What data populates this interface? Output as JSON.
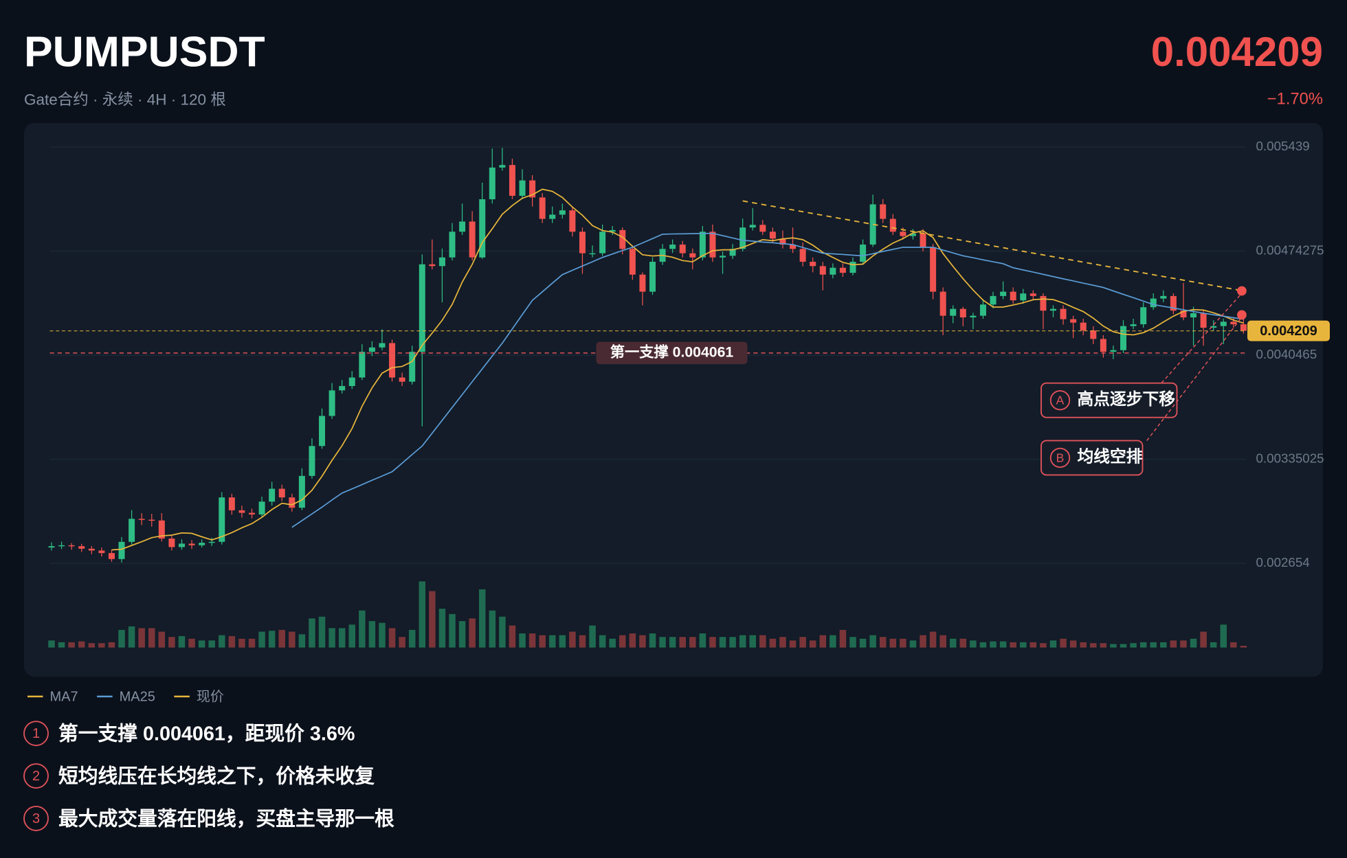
{
  "header": {
    "title": "PUMPUSDT",
    "subtitle": "Gate合约 · 永续 · 4H · 120 根",
    "change": "−1.70%"
  },
  "chart_data": {
    "type": "candlestick",
    "ylim": [
      0.002654,
      0.005439
    ],
    "yticks": [
      0.005439,
      0.00474275,
      0.0040465,
      0.00335025,
      0.002654
    ],
    "grid": true,
    "up_color": "#2ebd85",
    "down_color": "#f0524f",
    "candles": [
      [
        0.00276,
        0.002795,
        0.00274,
        0.002769
      ],
      [
        0.002769,
        0.0028,
        0.00275,
        0.002775
      ],
      [
        0.002775,
        0.00279,
        0.002745,
        0.002769
      ],
      [
        0.002769,
        0.002785,
        0.00273,
        0.002752
      ],
      [
        0.002752,
        0.00277,
        0.002715,
        0.00274
      ],
      [
        0.00274,
        0.00276,
        0.0027,
        0.002723
      ],
      [
        0.002723,
        0.002745,
        0.002665,
        0.002683
      ],
      [
        0.002683,
        0.00283,
        0.00266,
        0.002798
      ],
      [
        0.002798,
        0.00301,
        0.00278,
        0.002952
      ],
      [
        0.002952,
        0.00299,
        0.00291,
        0.002946
      ],
      [
        0.002946,
        0.002985,
        0.0029,
        0.002941
      ],
      [
        0.002941,
        0.00299,
        0.0028,
        0.00282
      ],
      [
        0.00282,
        0.002845,
        0.00274,
        0.002763
      ],
      [
        0.002763,
        0.002815,
        0.002745,
        0.002786
      ],
      [
        0.002786,
        0.00281,
        0.00275,
        0.002775
      ],
      [
        0.002775,
        0.002815,
        0.00276,
        0.002792
      ],
      [
        0.002792,
        0.002825,
        0.00277,
        0.002798
      ],
      [
        0.002798,
        0.00313,
        0.00278,
        0.003095
      ],
      [
        0.003095,
        0.00312,
        0.00298,
        0.003009
      ],
      [
        0.003009,
        0.00304,
        0.00296,
        0.002992
      ],
      [
        0.002992,
        0.00302,
        0.002955,
        0.002981
      ],
      [
        0.002981,
        0.0031,
        0.00296,
        0.003067
      ],
      [
        0.003067,
        0.0032,
        0.00304,
        0.003153
      ],
      [
        0.003153,
        0.00318,
        0.00307,
        0.003095
      ],
      [
        0.003095,
        0.00312,
        0.003,
        0.003026
      ],
      [
        0.003026,
        0.00329,
        0.00301,
        0.003239
      ],
      [
        0.003239,
        0.00349,
        0.00322,
        0.003439
      ],
      [
        0.003439,
        0.00369,
        0.00342,
        0.00364
      ],
      [
        0.00364,
        0.00386,
        0.00362,
        0.003811
      ],
      [
        0.003811,
        0.00388,
        0.00379,
        0.00384
      ],
      [
        0.00384,
        0.00394,
        0.00382,
        0.003897
      ],
      [
        0.003897,
        0.00412,
        0.00388,
        0.004069
      ],
      [
        0.004069,
        0.00414,
        0.00404,
        0.004098
      ],
      [
        0.004098,
        0.00422,
        0.00408,
        0.004127
      ],
      [
        0.004127,
        0.00415,
        0.00387,
        0.003897
      ],
      [
        0.003897,
        0.00393,
        0.00384,
        0.003869
      ],
      [
        0.003869,
        0.00411,
        0.00385,
        0.004069
      ],
      [
        0.004069,
        0.00472,
        0.003571,
        0.004654
      ],
      [
        0.004654,
        0.00482,
        0.00462,
        0.004642
      ],
      [
        0.004642,
        0.00476,
        0.0044,
        0.0047
      ],
      [
        0.0047,
        0.00493,
        0.00468,
        0.004872
      ],
      [
        0.004872,
        0.00506,
        0.00485,
        0.00494
      ],
      [
        0.00494,
        0.00501,
        0.00468,
        0.0047
      ],
      [
        0.0047,
        0.0052,
        0.00469,
        0.005089
      ],
      [
        0.005089,
        0.005428,
        0.00506,
        0.005301
      ],
      [
        0.005301,
        0.005433,
        0.00528,
        0.005318
      ],
      [
        0.005318,
        0.00536,
        0.00509,
        0.005112
      ],
      [
        0.005112,
        0.00529,
        0.00509,
        0.005215
      ],
      [
        0.005215,
        0.00525,
        0.00504,
        0.005101
      ],
      [
        0.005101,
        0.00513,
        0.00493,
        0.004958
      ],
      [
        0.004958,
        0.00504,
        0.00493,
        0.004986
      ],
      [
        0.004986,
        0.00506,
        0.00496,
        0.005015
      ],
      [
        0.005015,
        0.00504,
        0.00484,
        0.004872
      ],
      [
        0.004872,
        0.0049,
        0.00459,
        0.004728
      ],
      [
        0.004728,
        0.00478,
        0.0047,
        0.004728
      ],
      [
        0.004728,
        0.00492,
        0.00471,
        0.004872
      ],
      [
        0.004872,
        0.00491,
        0.00485,
        0.004883
      ],
      [
        0.004883,
        0.0049,
        0.00472,
        0.004757
      ],
      [
        0.004757,
        0.00478,
        0.00455,
        0.004585
      ],
      [
        0.004585,
        0.0046,
        0.00438,
        0.004471
      ],
      [
        0.004471,
        0.0047,
        0.00445,
        0.004671
      ],
      [
        0.004671,
        0.00479,
        0.00465,
        0.004757
      ],
      [
        0.004757,
        0.00482,
        0.00473,
        0.004786
      ],
      [
        0.004786,
        0.00481,
        0.0047,
        0.004728
      ],
      [
        0.004728,
        0.00476,
        0.00462,
        0.0047
      ],
      [
        0.0047,
        0.00491,
        0.00468,
        0.004872
      ],
      [
        0.004872,
        0.00492,
        0.00467,
        0.0047
      ],
      [
        0.0047,
        0.00474,
        0.00459,
        0.004711
      ],
      [
        0.004711,
        0.00479,
        0.00469,
        0.004757
      ],
      [
        0.004757,
        0.00496,
        0.00474,
        0.0049
      ],
      [
        0.0049,
        0.00503,
        0.00488,
        0.004918
      ],
      [
        0.004918,
        0.00495,
        0.00485,
        0.004872
      ],
      [
        0.004872,
        0.0049,
        0.0048,
        0.004826
      ],
      [
        0.004826,
        0.00488,
        0.00476,
        0.004786
      ],
      [
        0.004786,
        0.0049,
        0.00473,
        0.004757
      ],
      [
        0.004757,
        0.0048,
        0.00464,
        0.004671
      ],
      [
        0.004671,
        0.0047,
        0.0046,
        0.004642
      ],
      [
        0.004642,
        0.00467,
        0.00448,
        0.004585
      ],
      [
        0.004585,
        0.00466,
        0.00456,
        0.004631
      ],
      [
        0.004631,
        0.00466,
        0.00457,
        0.004597
      ],
      [
        0.004597,
        0.0047,
        0.00458,
        0.004671
      ],
      [
        0.004671,
        0.00482,
        0.00465,
        0.004786
      ],
      [
        0.004786,
        0.00512,
        0.00477,
        0.005055
      ],
      [
        0.005055,
        0.00509,
        0.00493,
        0.004958
      ],
      [
        0.004958,
        0.00499,
        0.00485,
        0.004872
      ],
      [
        0.004872,
        0.0049,
        0.00482,
        0.004843
      ],
      [
        0.004843,
        0.00489,
        0.00482,
        0.00486
      ],
      [
        0.00486,
        0.00489,
        0.00474,
        0.004769
      ],
      [
        0.004769,
        0.00479,
        0.00442,
        0.004471
      ],
      [
        0.004471,
        0.0045,
        0.00418,
        0.00431
      ],
      [
        0.00431,
        0.00438,
        0.00426,
        0.004356
      ],
      [
        0.004356,
        0.00437,
        0.00424,
        0.004299
      ],
      [
        0.004299,
        0.00433,
        0.00422,
        0.00431
      ],
      [
        0.00431,
        0.00442,
        0.00429,
        0.004385
      ],
      [
        0.004385,
        0.00447,
        0.00436,
        0.004442
      ],
      [
        0.004442,
        0.00454,
        0.00442,
        0.004471
      ],
      [
        0.004471,
        0.0045,
        0.00439,
        0.004413
      ],
      [
        0.004413,
        0.00449,
        0.00439,
        0.004459
      ],
      [
        0.004459,
        0.00448,
        0.00442,
        0.004442
      ],
      [
        0.004442,
        0.00446,
        0.00422,
        0.004344
      ],
      [
        0.004344,
        0.00438,
        0.0043,
        0.004356
      ],
      [
        0.004356,
        0.00438,
        0.00425,
        0.004287
      ],
      [
        0.004287,
        0.00431,
        0.00416,
        0.004264
      ],
      [
        0.004264,
        0.00429,
        0.00418,
        0.004212
      ],
      [
        0.004212,
        0.00424,
        0.00412,
        0.004155
      ],
      [
        0.004155,
        0.00418,
        0.00403,
        0.004069
      ],
      [
        0.004069,
        0.00411,
        0.00402,
        0.00408
      ],
      [
        0.00408,
        0.00428,
        0.00406,
        0.004241
      ],
      [
        0.004241,
        0.00429,
        0.00422,
        0.004253
      ],
      [
        0.004253,
        0.0044,
        0.00423,
        0.004367
      ],
      [
        0.004367,
        0.00446,
        0.00435,
        0.004425
      ],
      [
        0.004425,
        0.00448,
        0.0044,
        0.004442
      ],
      [
        0.004442,
        0.00446,
        0.00432,
        0.004344
      ],
      [
        0.004344,
        0.00453,
        0.00428,
        0.004299
      ],
      [
        0.004299,
        0.00437,
        0.00411,
        0.004327
      ],
      [
        0.004327,
        0.00435,
        0.00411,
        0.00423
      ],
      [
        0.00423,
        0.00428,
        0.00421,
        0.004241
      ],
      [
        0.004241,
        0.00429,
        0.00412,
        0.00427
      ],
      [
        0.00427,
        0.0043,
        0.00423,
        0.004253
      ],
      [
        0.004253,
        0.00429,
        0.00419,
        0.004209
      ]
    ],
    "volumes": [
      8,
      6,
      6,
      7,
      5,
      5,
      6,
      20,
      24,
      22,
      22,
      18,
      12,
      13,
      10,
      8,
      8,
      14,
      13,
      10,
      10,
      18,
      19,
      20,
      18,
      15,
      33,
      35,
      22,
      22,
      26,
      42,
      30,
      28,
      22,
      12,
      20,
      75,
      64,
      44,
      38,
      30,
      33,
      66,
      42,
      35,
      25,
      16,
      16,
      14,
      14,
      14,
      18,
      14,
      25,
      14,
      10,
      14,
      16,
      14,
      16,
      12,
      12,
      12,
      12,
      16,
      12,
      12,
      12,
      14,
      14,
      14,
      10,
      12,
      8,
      12,
      8,
      14,
      14,
      20,
      12,
      10,
      14,
      12,
      10,
      10,
      8,
      14,
      18,
      14,
      10,
      10,
      8,
      6,
      7,
      7,
      6,
      6,
      6,
      5,
      8,
      10,
      8,
      6,
      5,
      5,
      4,
      4,
      5,
      6,
      6,
      6,
      8,
      8,
      10,
      18,
      6,
      26,
      6,
      2
    ],
    "series": [
      {
        "name": "MA7",
        "color": "#e8b53c",
        "values": [
          null,
          null,
          null,
          null,
          null,
          null,
          0.002744,
          0.002749,
          0.002774,
          0.002799,
          0.002826,
          0.002838,
          0.002843,
          0.002858,
          0.002855,
          0.002832,
          0.002811,
          0.002833,
          0.00286,
          0.002892,
          0.00292,
          0.002962,
          0.003014,
          0.003056,
          0.003046,
          0.003079,
          0.003143,
          0.003237,
          0.003343,
          0.003441,
          0.003556,
          0.003705,
          0.003828,
          0.003926,
          0.003963,
          0.003971,
          0.004004,
          0.004112,
          0.004194,
          0.00428,
          0.004386,
          0.004535,
          0.004654,
          0.0048,
          0.004892,
          0.004989,
          0.005047,
          0.005096,
          0.005119,
          0.005156,
          0.005142,
          0.005101,
          0.005037,
          0.004982,
          0.004913,
          0.00488,
          0.004869,
          0.004836,
          0.004775,
          0.004718,
          0.00471,
          0.004714,
          0.004701,
          0.004679,
          0.004671,
          0.004712,
          0.004745,
          0.004751,
          0.004751,
          0.004767,
          0.004794,
          0.004819,
          0.004812,
          0.004824,
          0.004831,
          0.004819,
          0.004782,
          0.004734,
          0.0047,
          0.004667,
          0.004651,
          0.004655,
          0.00471,
          0.004755,
          0.004796,
          0.004826,
          0.004864,
          0.004878,
          0.004833,
          0.004726,
          0.00464,
          0.004558,
          0.004482,
          0.004414,
          0.004368,
          0.004368,
          0.004382,
          0.004397,
          0.004417,
          0.004422,
          0.004418,
          0.004396,
          0.004366,
          0.004338,
          0.004294,
          0.004241,
          0.004203,
          0.004187,
          0.004182,
          0.004197,
          0.004227,
          0.004268,
          0.004307,
          0.004339,
          0.004351,
          0.004348,
          0.00433,
          0.004308,
          0.004281,
          0.004261
        ]
      },
      {
        "name": "MA25",
        "color": "#5b9bd5",
        "values": [
          null,
          null,
          null,
          null,
          null,
          null,
          null,
          null,
          null,
          null,
          null,
          null,
          null,
          null,
          null,
          null,
          null,
          null,
          null,
          null,
          null,
          null,
          null,
          null,
          0.002895,
          0.00294,
          0.002985,
          0.00303,
          0.003078,
          0.003124,
          0.003152,
          0.003181,
          0.00321,
          0.003238,
          0.003267,
          0.003324,
          0.003382,
          0.003439,
          0.003525,
          0.003611,
          0.003697,
          0.003783,
          0.003869,
          0.003955,
          0.004041,
          0.004127,
          0.004222,
          0.004318,
          0.004413,
          0.00447,
          0.004528,
          0.004585,
          0.004614,
          0.004643,
          0.004671,
          0.0047,
          0.004723,
          0.004746,
          0.004768,
          0.004797,
          0.004826,
          0.004855,
          0.004857,
          0.004858,
          0.004859,
          0.00486,
          0.004861,
          0.004846,
          0.00483,
          0.004815,
          0.004809,
          0.004803,
          0.004798,
          0.004792,
          0.004786,
          0.004767,
          0.004747,
          0.004728,
          0.004724,
          0.00472,
          0.004715,
          0.004711,
          0.004725,
          0.00474,
          0.004754,
          0.004768,
          0.004768,
          0.004768,
          0.004768,
          0.004749,
          0.00473,
          0.004711,
          0.004698,
          0.004684,
          0.004671,
          0.004658,
          0.004631,
          0.004616,
          0.004602,
          0.004587,
          0.004572,
          0.004557,
          0.004543,
          0.004528,
          0.004514,
          0.004499,
          0.004476,
          0.004453,
          0.004431,
          0.004408,
          0.004385,
          0.004373,
          0.004362,
          0.00435,
          0.004339,
          0.004327,
          0.004317,
          0.004307,
          0.004297,
          0.004287
        ]
      }
    ],
    "current": {
      "name": "现价",
      "value": 0.004209,
      "color": "#e8b53c"
    },
    "support": {
      "label": "第一支撑 0.004061",
      "value": 0.004061,
      "color": "#e0525a"
    },
    "trendline": {
      "x": [
        69,
        119
      ],
      "y": [
        0.005078,
        0.004476
      ],
      "color": "#e8b53c"
    },
    "annotations": [
      {
        "marker": "A",
        "text": "高点逐步下移",
        "x": 119,
        "y": 0.004476
      },
      {
        "marker": "B",
        "text": "均线空排",
        "x": 119,
        "y": 0.004316
      }
    ]
  },
  "notes": [
    {
      "marker": "1",
      "text": "第一支撑 0.004061，距现价 3.6%"
    },
    {
      "marker": "2",
      "text": "短均线压在长均线之下，价格未收复"
    },
    {
      "marker": "3",
      "text": "最大成交量落在阳线，买盘主导那一根"
    }
  ]
}
